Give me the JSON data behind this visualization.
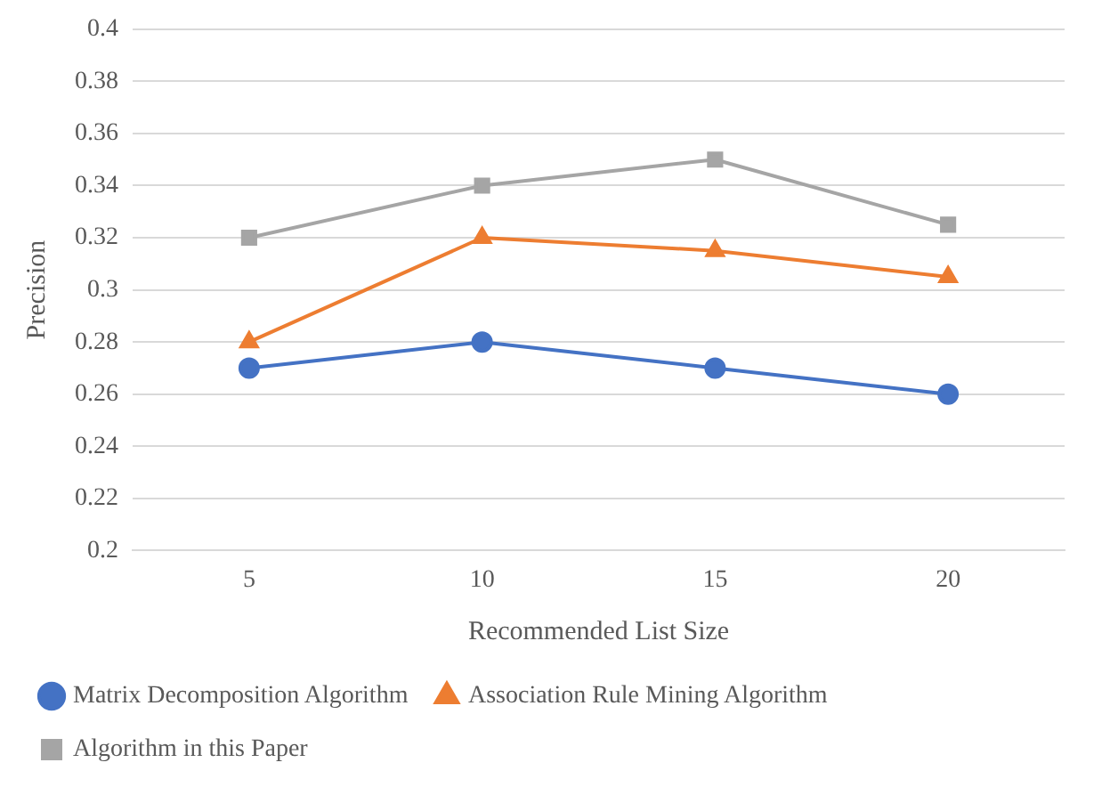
{
  "chart_data": {
    "type": "line",
    "xlabel": "Recommended List Size",
    "ylabel": "Precision",
    "categories": [
      "5",
      "10",
      "15",
      "20"
    ],
    "series": [
      {
        "name": "Matrix Decomposition Algorithm",
        "color": "#4472c4",
        "marker": "circle",
        "values": [
          0.27,
          0.28,
          0.27,
          0.26
        ]
      },
      {
        "name": "Association Rule Mining Algorithm",
        "color": "#ed7d31",
        "marker": "triangle",
        "values": [
          0.28,
          0.32,
          0.315,
          0.305
        ]
      },
      {
        "name": "Algorithm in this Paper",
        "color": "#a5a5a5",
        "marker": "square",
        "values": [
          0.32,
          0.34,
          0.35,
          0.325
        ]
      }
    ],
    "ylim": [
      0.2,
      0.4
    ],
    "yticks": [
      0.2,
      0.22,
      0.24,
      0.26,
      0.28,
      0.3,
      0.32,
      0.34,
      0.36,
      0.38,
      0.4
    ],
    "grid": "y",
    "legend": "bottom",
    "line_style": "solid"
  }
}
